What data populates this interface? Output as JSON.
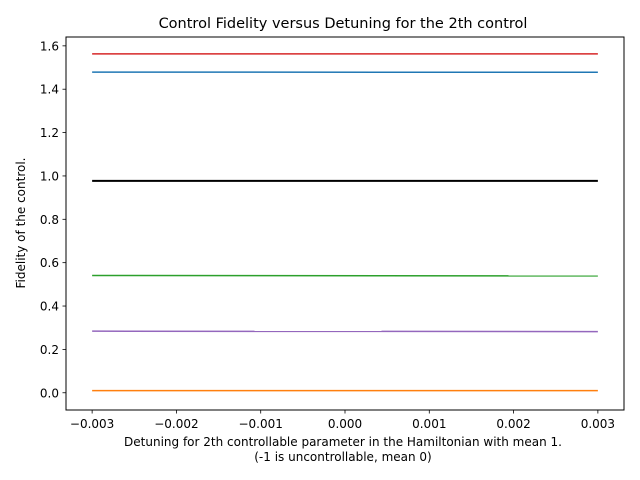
{
  "chart_data": {
    "type": "line",
    "title": "Control Fidelity versus Detuning for the 2th control",
    "xlabel_line1": "Detuning for 2th controllable parameter in the Hamiltonian with mean 1.",
    "xlabel_line2": "(-1 is uncontrollable, mean 0)",
    "ylabel": "Fidelity of the control.",
    "xlim": [
      -0.00331,
      0.00331
    ],
    "ylim": [
      -0.0795,
      1.6408
    ],
    "x_ticks": [
      -0.003,
      -0.002,
      -0.001,
      0.0,
      0.001,
      0.002,
      0.003
    ],
    "x_tick_labels": [
      "−0.003",
      "−0.002",
      "−0.001",
      "0.000",
      "0.001",
      "0.002",
      "0.003"
    ],
    "y_ticks": [
      0.0,
      0.2,
      0.4,
      0.6,
      0.8,
      1.0,
      1.2,
      1.4,
      1.6
    ],
    "y_tick_labels": [
      "0.0",
      "0.2",
      "0.4",
      "0.6",
      "0.8",
      "1.0",
      "1.2",
      "1.4",
      "1.6"
    ],
    "grid": false,
    "legend": "none",
    "series": [
      {
        "color": "#d62728",
        "x": [
          -0.003,
          0.003
        ],
        "y": [
          1.563,
          1.563
        ],
        "width": 1.5
      },
      {
        "color": "#1f77b4",
        "x": [
          -0.003,
          0.003
        ],
        "y": [
          1.479,
          1.478
        ],
        "width": 1.5
      },
      {
        "color": "#000000",
        "x": [
          -0.003,
          0.003
        ],
        "y": [
          0.977,
          0.977
        ],
        "width": 2.0
      },
      {
        "color": "#2ca02c",
        "x": [
          -0.003,
          0.003
        ],
        "y": [
          0.541,
          0.539
        ],
        "width": 1.5
      },
      {
        "color": "#9467bd",
        "x": [
          -0.003,
          0.003
        ],
        "y": [
          0.284,
          0.282
        ],
        "width": 1.5
      },
      {
        "color": "#ff7f0e",
        "x": [
          -0.003,
          0.003
        ],
        "y": [
          0.01,
          0.01
        ],
        "width": 1.5
      }
    ]
  }
}
